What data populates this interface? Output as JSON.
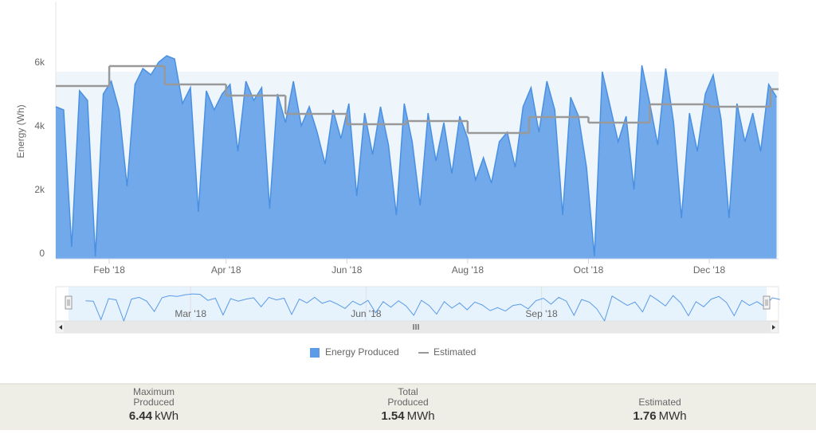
{
  "chart_data": {
    "type": "area",
    "y_label": "Energy (Wh)",
    "ylim": [
      0,
      8000
    ],
    "yticks": [
      0,
      {
        "value": 2000,
        "label": "2k"
      },
      {
        "value": 4000,
        "label": "4k"
      },
      {
        "value": 6000,
        "label": "6k"
      }
    ],
    "xlim": [
      4,
      369
    ],
    "xticks": [
      {
        "value": 31,
        "label": "Feb '18"
      },
      {
        "value": 90,
        "label": "Apr '18"
      },
      {
        "value": 151,
        "label": "Jun '18"
      },
      {
        "value": 212,
        "label": "Aug '18"
      },
      {
        "value": 273,
        "label": "Oct '18"
      },
      {
        "value": 334,
        "label": "Dec '18"
      }
    ],
    "plot_band": [
      0,
      5800
    ],
    "series": [
      {
        "name": "Energy Produced",
        "color": "#5b9be8",
        "x": [
          4,
          8,
          12,
          16,
          20,
          24,
          28,
          32,
          36,
          40,
          44,
          48,
          52,
          56,
          60,
          64,
          68,
          72,
          76,
          80,
          84,
          88,
          92,
          96,
          100,
          104,
          108,
          112,
          116,
          120,
          124,
          128,
          132,
          136,
          140,
          144,
          148,
          152,
          156,
          160,
          164,
          168,
          172,
          176,
          180,
          184,
          188,
          192,
          196,
          200,
          204,
          208,
          212,
          216,
          220,
          224,
          228,
          232,
          236,
          240,
          244,
          248,
          252,
          256,
          260,
          264,
          268,
          272,
          276,
          280,
          284,
          288,
          292,
          296,
          300,
          304,
          308,
          312,
          316,
          320,
          324,
          328,
          332,
          336,
          340,
          344,
          348,
          352,
          356,
          360,
          364,
          368
        ],
        "values": [
          4700,
          4600,
          300,
          5200,
          4900,
          0,
          5100,
          5500,
          4600,
          2200,
          5400,
          5900,
          5700,
          6100,
          6300,
          6200,
          4800,
          5300,
          1400,
          5200,
          4600,
          5100,
          5400,
          3300,
          5500,
          4900,
          5300,
          1500,
          5100,
          4200,
          5500,
          4100,
          4700,
          3900,
          2900,
          4600,
          3700,
          4800,
          1900,
          4500,
          3200,
          4700,
          3500,
          1300,
          4800,
          3600,
          1600,
          4500,
          3000,
          4200,
          2600,
          4400,
          3700,
          2400,
          3100,
          2300,
          3600,
          3900,
          2800,
          4700,
          5300,
          3900,
          5500,
          4600,
          1300,
          5000,
          4400,
          2800,
          0,
          5800,
          4700,
          3600,
          4400,
          2100,
          6000,
          4800,
          3500,
          5900,
          4200,
          1200,
          4500,
          3300,
          5100,
          5700,
          4300,
          1200,
          4800,
          3600,
          4500,
          3300,
          5400,
          5000
        ]
      },
      {
        "name": "Estimated",
        "color": "#999999",
        "x": [
          4,
          31,
          59,
          90,
          120,
          151,
          181,
          212,
          243,
          273,
          304,
          334,
          365
        ],
        "values": [
          5350,
          5975,
          5400,
          5050,
          4475,
          4150,
          4250,
          3875,
          4375,
          4200,
          4775,
          4700,
          5250
        ]
      }
    ],
    "navigator": {
      "xlim": [
        -5,
        361
      ],
      "xticks": [
        {
          "value": 59,
          "label": "Mar '18"
        },
        {
          "value": 151,
          "label": "Jun '18"
        },
        {
          "value": 243,
          "label": "Sep '18"
        }
      ]
    },
    "stats": [
      {
        "label": [
          "Maximum",
          "Produced"
        ],
        "value": 6.44,
        "unit": "kWh"
      },
      {
        "label": [
          "Total",
          "Produced"
        ],
        "value": 1.54,
        "unit": "MWh"
      },
      {
        "label": [
          "Estimated"
        ],
        "value": 1.76,
        "unit": "MWh"
      }
    ]
  }
}
